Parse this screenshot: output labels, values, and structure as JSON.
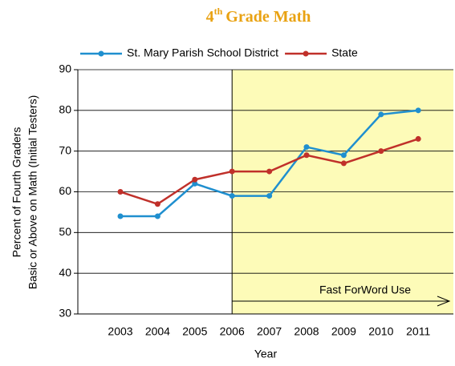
{
  "chart_data": {
    "type": "line",
    "title": [
      "4",
      "th",
      "Grade Math"
    ],
    "xlabel": "Year",
    "ylabel": [
      "Percent of Fourth Graders",
      "Basic or Above on Math (Initial Testers)"
    ],
    "categories": [
      "2003",
      "2004",
      "2005",
      "2006",
      "2007",
      "2008",
      "2009",
      "2010",
      "2011"
    ],
    "series": [
      {
        "name": "St. Mary Parish School District",
        "color": "#1f8fcf",
        "values": [
          54,
          54,
          62,
          59,
          59,
          71,
          69,
          79,
          80
        ]
      },
      {
        "name": "State",
        "color": "#c0302a",
        "values": [
          60,
          57,
          63,
          65,
          65,
          69,
          67,
          70,
          73
        ]
      }
    ],
    "ylim": [
      30,
      90
    ],
    "yticks": [
      30,
      40,
      50,
      60,
      70,
      80,
      90
    ],
    "grid": true,
    "shaded_from": "2006",
    "shade_color": "#fdfbb8",
    "annotation": "Fast ForWord Use"
  }
}
